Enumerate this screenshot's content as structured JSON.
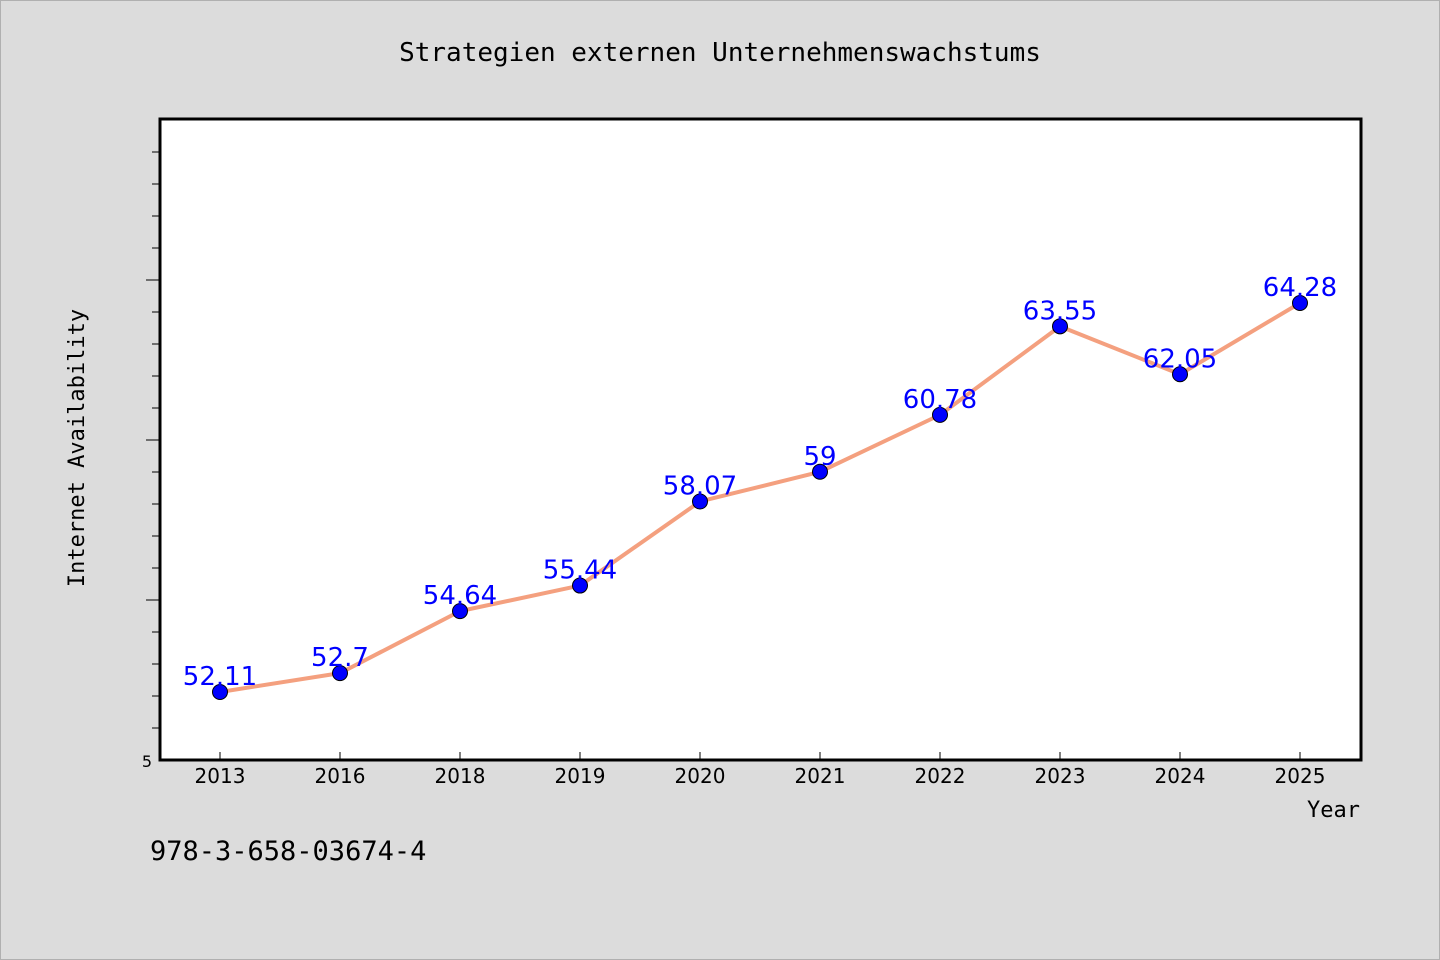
{
  "chart_data": {
    "type": "line",
    "title": "Strategien externen Unternehmenswachstums",
    "xlabel": "Year",
    "ylabel": "Internet Availability",
    "categories": [
      "2013",
      "2016",
      "2018",
      "2019",
      "2020",
      "2021",
      "2022",
      "2023",
      "2024",
      "2025"
    ],
    "series": [
      {
        "values": [
          52.11,
          52.7,
          54.64,
          55.44,
          58.07,
          59,
          60.78,
          63.55,
          62.05,
          64.28
        ],
        "labels": [
          "52.11",
          "52.7",
          "54.64",
          "55.44",
          "58.07",
          "59",
          "60.78",
          "63.55",
          "62.05",
          "64.28"
        ]
      }
    ],
    "y_tick_labels": [
      "5"
    ],
    "grid": false,
    "colors": {
      "line": "#f4a07f",
      "marker": "#0000ff",
      "data_label": "#0000ff",
      "background": "#dcdcdc",
      "plot_background": "#ffffff"
    }
  },
  "footnote": "978-3-658-03674-4"
}
